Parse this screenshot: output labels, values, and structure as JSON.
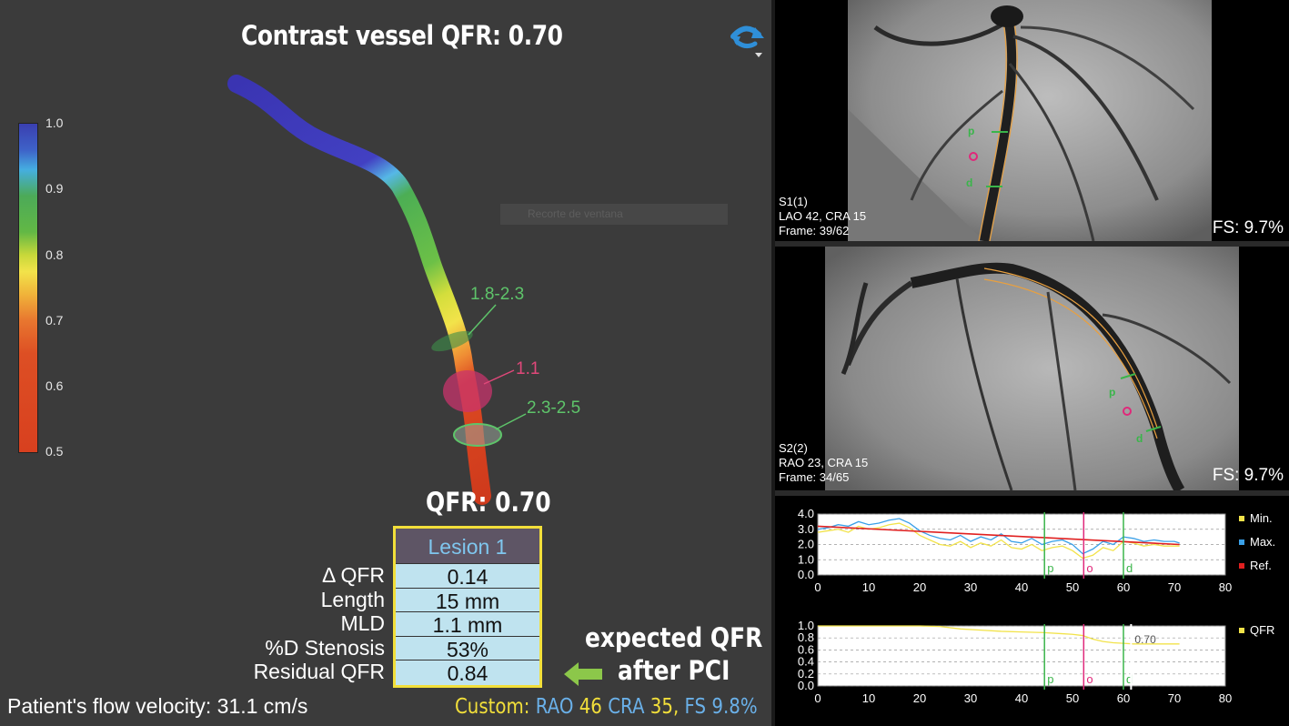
{
  "title": "Contrast vessel QFR: 0.70",
  "colorbar": {
    "ticks": [
      "1.0",
      "0.9",
      "0.8",
      "0.7",
      "0.6",
      "0.5"
    ]
  },
  "ghost_tooltip": "Recorte de ventana",
  "vessel_labels": {
    "proximal": "1.8-2.3",
    "lesion": "1.1",
    "distal": "2.3-2.5"
  },
  "qfr_value": "QFR: 0.70",
  "lesion": {
    "header": "Lesion 1",
    "rows": [
      {
        "label": "Δ QFR",
        "value": "0.14"
      },
      {
        "label": "Length",
        "value": "15 mm"
      },
      {
        "label": "MLD",
        "value": "1.1 mm"
      },
      {
        "label": "%D Stenosis",
        "value": "53%"
      },
      {
        "label": "Residual QFR",
        "value": "0.84"
      }
    ]
  },
  "flow_velocity": "Patient's flow velocity: 31.1 cm/s",
  "expected": {
    "line1": "expected QFR",
    "line2": "after PCI"
  },
  "custom": {
    "label": "Custom:",
    "rao": "RAO",
    "rao_val": "46",
    "cra": "CRA",
    "cra_val": "35",
    "fs": "FS",
    "fs_val": "9.8%"
  },
  "angio1": {
    "series": "S1(1)",
    "angle": "LAO 42, CRA 15",
    "frame": "Frame: 39/62",
    "fs": "FS: 9.7%"
  },
  "angio2": {
    "series": "S2(2)",
    "angle": "RAO 23, CRA 15",
    "frame": "Frame: 34/65",
    "fs": "FS: 9.7%"
  },
  "chart_data": [
    {
      "type": "line",
      "yticks": [
        "4.0",
        "3.0",
        "2.0",
        "1.0",
        "0.0"
      ],
      "xticks": [
        "0",
        "10",
        "20",
        "30",
        "40",
        "50",
        "60",
        "70",
        "80"
      ],
      "xlim": [
        0,
        80
      ],
      "ylim": [
        0,
        4
      ],
      "markers": [
        {
          "label": "p",
          "x": 44.5,
          "color": "#3ab54a"
        },
        {
          "label": "o",
          "x": 52.2,
          "color": "#e0287a"
        },
        {
          "label": "d",
          "x": 60.0,
          "color": "#3ab54a"
        }
      ],
      "legend": [
        "Min.",
        "Max.",
        "Ref."
      ],
      "legend_colors": [
        "#f2e34a",
        "#3aa0e8",
        "#e02020"
      ],
      "series": [
        {
          "name": "Min.",
          "x": [
            0,
            2,
            4,
            6,
            8,
            10,
            12,
            14,
            16,
            18,
            20,
            22,
            24,
            26,
            28,
            30,
            32,
            34,
            36,
            38,
            40,
            42,
            44,
            46,
            48,
            50,
            52,
            54,
            56,
            58,
            60,
            62,
            64,
            66,
            68,
            70,
            71
          ],
          "values": [
            2.8,
            2.9,
            3.0,
            2.8,
            3.2,
            3.0,
            3.1,
            3.3,
            3.4,
            3.1,
            2.6,
            2.3,
            2.0,
            1.9,
            2.2,
            1.8,
            2.1,
            1.9,
            2.3,
            1.8,
            1.7,
            2.0,
            1.6,
            1.8,
            1.9,
            1.6,
            1.1,
            1.3,
            1.8,
            1.6,
            2.2,
            2.1,
            1.9,
            2.0,
            1.9,
            1.9,
            1.9
          ]
        },
        {
          "name": "Max.",
          "x": [
            0,
            2,
            4,
            6,
            8,
            10,
            12,
            14,
            16,
            18,
            20,
            22,
            24,
            26,
            28,
            30,
            32,
            34,
            36,
            38,
            40,
            42,
            44,
            46,
            48,
            50,
            52,
            54,
            56,
            58,
            60,
            62,
            64,
            66,
            68,
            70,
            71
          ],
          "values": [
            3.0,
            3.1,
            3.3,
            3.2,
            3.5,
            3.3,
            3.4,
            3.6,
            3.7,
            3.4,
            2.9,
            2.6,
            2.4,
            2.3,
            2.6,
            2.2,
            2.5,
            2.3,
            2.7,
            2.2,
            2.1,
            2.4,
            2.0,
            2.2,
            2.3,
            2.0,
            1.4,
            1.7,
            2.2,
            2.0,
            2.5,
            2.4,
            2.2,
            2.3,
            2.2,
            2.2,
            2.1
          ]
        },
        {
          "name": "Ref.",
          "x": [
            0,
            71
          ],
          "values": [
            3.2,
            2.0
          ]
        }
      ]
    },
    {
      "type": "line",
      "yticks": [
        "1.0",
        "0.8",
        "0.6",
        "0.4",
        "0.2",
        "0.0"
      ],
      "xticks": [
        "0",
        "10",
        "20",
        "30",
        "40",
        "50",
        "60",
        "70",
        "80"
      ],
      "xlim": [
        0,
        80
      ],
      "ylim": [
        0,
        1
      ],
      "markers": [
        {
          "label": "p",
          "x": 44.5,
          "color": "#3ab54a"
        },
        {
          "label": "o",
          "x": 52.2,
          "color": "#e0287a"
        },
        {
          "label": "d",
          "x": 60.0,
          "color": "#3ab54a"
        }
      ],
      "annotation": "0.70",
      "legend": [
        "QFR"
      ],
      "legend_colors": [
        "#f2e34a"
      ],
      "series": [
        {
          "name": "QFR",
          "x": [
            0,
            20,
            24,
            28,
            32,
            36,
            40,
            44,
            48,
            50,
            52,
            54,
            56,
            58,
            60,
            62,
            66,
            71
          ],
          "values": [
            1.0,
            1.0,
            0.99,
            0.95,
            0.93,
            0.91,
            0.9,
            0.89,
            0.87,
            0.86,
            0.84,
            0.78,
            0.74,
            0.72,
            0.71,
            0.7,
            0.7,
            0.7
          ]
        }
      ]
    }
  ]
}
